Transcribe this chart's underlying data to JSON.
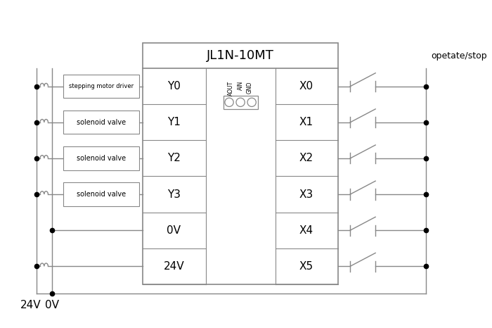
{
  "title": "JL1N-10MT",
  "bg_color": "#ffffff",
  "line_color": "#888888",
  "dark_color": "#000000",
  "left_outputs": [
    "Y0",
    "Y1",
    "Y2",
    "Y3",
    "0V",
    "24V"
  ],
  "right_inputs": [
    "X0",
    "X1",
    "X2",
    "X3",
    "X4",
    "X5"
  ],
  "left_labels": [
    "stepping motor driver",
    "solenoid valve",
    "solenoid valve",
    "solenoid valve",
    "",
    ""
  ],
  "label_24v": "24V",
  "label_0v": "0V",
  "label_opetate": "opetate/stop",
  "connector_labels": [
    "AOUT",
    "AIN",
    "GND"
  ]
}
